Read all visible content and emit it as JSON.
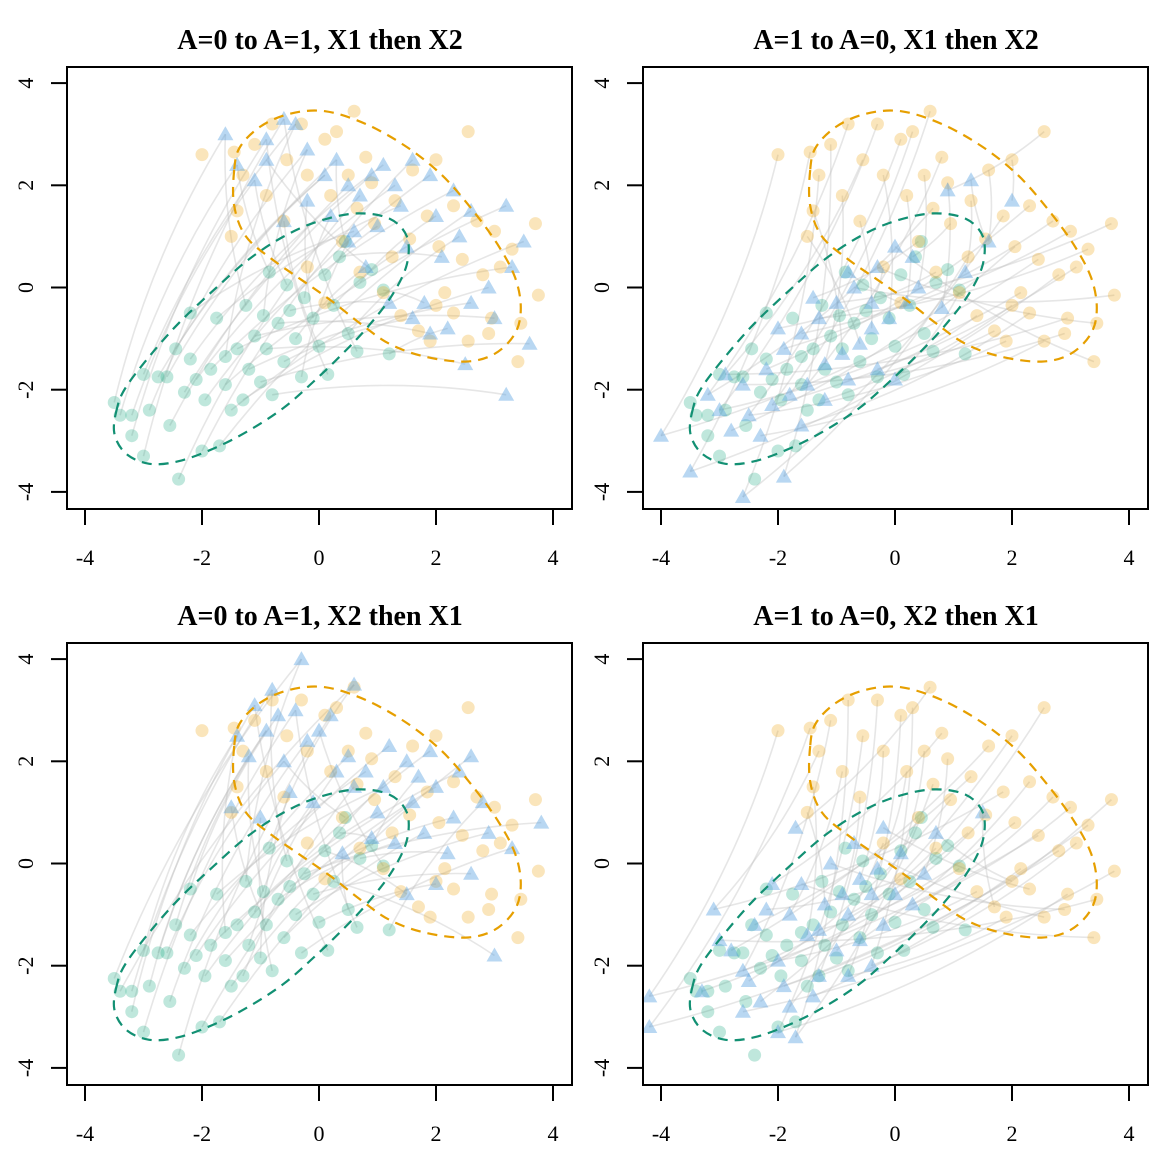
{
  "chart_data": [
    {
      "type": "scatter",
      "title": "A=0 to A=1, X1 then X2",
      "source_group": "A=0",
      "target_group": "A=1",
      "xlim": [
        -4.3,
        4.3
      ],
      "ylim": [
        -4.3,
        4.3
      ],
      "xticks": [
        -4,
        -2,
        0,
        2,
        4
      ],
      "yticks": [
        -4,
        -2,
        0,
        2,
        4
      ],
      "xtick_labels": [
        "-4",
        "-2",
        "0",
        "2",
        "4"
      ],
      "ytick_labels": [
        "-4",
        "-2",
        "0",
        "2",
        "4"
      ],
      "xlabel": "",
      "ylabel": "",
      "grid": false,
      "legend": "none",
      "counterfactual_targets": [
        [
          -1.6,
          3.0
        ],
        [
          -1.4,
          2.4
        ],
        [
          -1.1,
          2.1
        ],
        [
          -0.9,
          2.9
        ],
        [
          -0.6,
          3.3
        ],
        [
          -0.4,
          3.2
        ],
        [
          -0.2,
          2.7
        ],
        [
          0.1,
          2.2
        ],
        [
          0.3,
          2.5
        ],
        [
          0.5,
          2.0
        ],
        [
          0.7,
          1.8
        ],
        [
          0.9,
          2.2
        ],
        [
          1.1,
          2.4
        ],
        [
          1.3,
          2.0
        ],
        [
          1.6,
          2.5
        ],
        [
          1.9,
          2.2
        ],
        [
          2.3,
          1.9
        ],
        [
          2.6,
          1.5
        ],
        [
          3.2,
          1.6
        ],
        [
          3.5,
          0.9
        ],
        [
          3.3,
          0.4
        ],
        [
          2.9,
          0.0
        ],
        [
          2.6,
          -0.3
        ],
        [
          3.0,
          -0.6
        ],
        [
          3.6,
          -1.1
        ],
        [
          2.5,
          -1.5
        ],
        [
          3.2,
          -2.1
        ],
        [
          1.9,
          -0.9
        ],
        [
          1.6,
          -0.6
        ],
        [
          1.2,
          -0.3
        ],
        [
          0.8,
          0.4
        ],
        [
          0.5,
          0.9
        ],
        [
          0.2,
          1.4
        ],
        [
          -0.2,
          1.7
        ],
        [
          -0.6,
          1.3
        ],
        [
          1.0,
          1.2
        ],
        [
          1.5,
          0.8
        ],
        [
          2.1,
          0.6
        ],
        [
          2.4,
          1.0
        ],
        [
          2.0,
          1.4
        ],
        [
          -0.9,
          2.5
        ],
        [
          1.8,
          -0.3
        ],
        [
          2.2,
          -0.8
        ],
        [
          1.4,
          1.6
        ],
        [
          0.6,
          1.1
        ]
      ]
    },
    {
      "type": "scatter",
      "title": "A=1 to A=0, X1 then X2",
      "source_group": "A=1",
      "target_group": "A=0",
      "xlim": [
        -4.3,
        4.3
      ],
      "ylim": [
        -4.3,
        4.3
      ],
      "xticks": [
        -4,
        -2,
        0,
        2,
        4
      ],
      "yticks": [
        -4,
        -2,
        0,
        2,
        4
      ],
      "xtick_labels": [
        "-4",
        "-2",
        "0",
        "2",
        "4"
      ],
      "ytick_labels": [
        "-4",
        "-2",
        "0",
        "2",
        "4"
      ],
      "xlabel": "",
      "ylabel": "",
      "grid": false,
      "legend": "none",
      "counterfactual_targets": [
        [
          -4.0,
          -2.9
        ],
        [
          -3.5,
          -3.6
        ],
        [
          -2.6,
          -4.1
        ],
        [
          -1.9,
          -3.7
        ],
        [
          -3.2,
          -2.1
        ],
        [
          -2.9,
          -1.7
        ],
        [
          -3.0,
          -2.4
        ],
        [
          -2.5,
          -2.5
        ],
        [
          -2.1,
          -2.3
        ],
        [
          -1.8,
          -2.1
        ],
        [
          -1.5,
          -1.9
        ],
        [
          -1.2,
          -1.5
        ],
        [
          -0.9,
          -1.3
        ],
        [
          -0.6,
          -1.1
        ],
        [
          -0.4,
          -0.8
        ],
        [
          -0.1,
          -0.6
        ],
        [
          0.2,
          -0.3
        ],
        [
          0.4,
          0.0
        ],
        [
          0.8,
          -0.4
        ],
        [
          1.2,
          0.3
        ],
        [
          1.6,
          0.9
        ],
        [
          2.0,
          1.7
        ],
        [
          0.9,
          1.9
        ],
        [
          -2.2,
          -1.6
        ],
        [
          -1.9,
          -1.2
        ],
        [
          -1.6,
          -0.9
        ],
        [
          -1.3,
          -0.6
        ],
        [
          -1.0,
          -0.3
        ],
        [
          -0.7,
          0.0
        ],
        [
          -0.3,
          0.4
        ],
        [
          0.0,
          0.8
        ],
        [
          -2.6,
          -1.9
        ],
        [
          -2.3,
          -2.9
        ],
        [
          -1.6,
          -2.7
        ],
        [
          -1.2,
          -2.2
        ],
        [
          -0.8,
          -1.8
        ],
        [
          -0.3,
          -1.6
        ],
        [
          0.0,
          -1.8
        ],
        [
          -2.0,
          -0.8
        ],
        [
          -1.4,
          -0.2
        ],
        [
          -0.8,
          0.3
        ],
        [
          -0.4,
          -0.3
        ],
        [
          0.3,
          0.6
        ],
        [
          1.3,
          2.1
        ],
        [
          -2.8,
          -2.8
        ]
      ]
    },
    {
      "type": "scatter",
      "title": "A=0 to A=1, X2 then X1",
      "source_group": "A=0",
      "target_group": "A=1",
      "xlim": [
        -4.3,
        4.3
      ],
      "ylim": [
        -4.3,
        4.3
      ],
      "xticks": [
        -4,
        -2,
        0,
        2,
        4
      ],
      "yticks": [
        -4,
        -2,
        0,
        2,
        4
      ],
      "xtick_labels": [
        "-4",
        "-2",
        "0",
        "2",
        "4"
      ],
      "ytick_labels": [
        "-4",
        "-2",
        "0",
        "2",
        "4"
      ],
      "xlabel": "",
      "ylabel": "",
      "grid": false,
      "legend": "none",
      "counterfactual_targets": [
        [
          -0.3,
          4.0
        ],
        [
          0.6,
          3.5
        ],
        [
          -0.8,
          3.4
        ],
        [
          -1.1,
          3.1
        ],
        [
          -0.4,
          3.0
        ],
        [
          -1.4,
          2.5
        ],
        [
          -1.2,
          2.1
        ],
        [
          -0.9,
          2.6
        ],
        [
          -0.6,
          2.0
        ],
        [
          -0.2,
          2.4
        ],
        [
          0.2,
          2.9
        ],
        [
          0.5,
          2.1
        ],
        [
          0.8,
          1.8
        ],
        [
          1.2,
          2.3
        ],
        [
          1.5,
          2.0
        ],
        [
          1.9,
          2.2
        ],
        [
          2.4,
          1.8
        ],
        [
          2.6,
          2.1
        ],
        [
          2.0,
          1.5
        ],
        [
          1.6,
          1.2
        ],
        [
          1.0,
          1.0
        ],
        [
          0.6,
          1.5
        ],
        [
          0.3,
          1.8
        ],
        [
          -0.1,
          1.2
        ],
        [
          -0.5,
          1.4
        ],
        [
          -1.5,
          1.1
        ],
        [
          -1.0,
          0.9
        ],
        [
          1.3,
          0.4
        ],
        [
          1.8,
          0.6
        ],
        [
          2.3,
          0.9
        ],
        [
          2.9,
          0.6
        ],
        [
          3.3,
          0.3
        ],
        [
          3.8,
          0.8
        ],
        [
          2.6,
          -0.2
        ],
        [
          2.0,
          -0.4
        ],
        [
          1.5,
          -0.6
        ],
        [
          3.0,
          -1.8
        ],
        [
          0.9,
          0.5
        ],
        [
          0.4,
          0.2
        ],
        [
          2.2,
          0.2
        ],
        [
          1.7,
          1.7
        ],
        [
          0.0,
          2.6
        ],
        [
          2.8,
          1.2
        ],
        [
          1.1,
          1.5
        ],
        [
          -0.7,
          2.9
        ]
      ]
    },
    {
      "type": "scatter",
      "title": "A=1 to A=0, X2 then X1",
      "source_group": "A=1",
      "target_group": "A=0",
      "xlim": [
        -4.3,
        4.3
      ],
      "ylim": [
        -4.3,
        4.3
      ],
      "xticks": [
        -4,
        -2,
        0,
        2,
        4
      ],
      "yticks": [
        -4,
        -2,
        0,
        2,
        4
      ],
      "xtick_labels": [
        "-4",
        "-2",
        "0",
        "2",
        "4"
      ],
      "ytick_labels": [
        "-4",
        "-2",
        "0",
        "2",
        "4"
      ],
      "xlabel": "",
      "ylabel": "",
      "grid": false,
      "legend": "none",
      "counterfactual_targets": [
        [
          -4.2,
          -2.6
        ],
        [
          -4.2,
          -3.2
        ],
        [
          -3.1,
          -0.9
        ],
        [
          -2.6,
          -2.1
        ],
        [
          -1.7,
          -3.4
        ],
        [
          -2.0,
          -3.3
        ],
        [
          -1.3,
          -2.2
        ],
        [
          -0.8,
          -2.2
        ],
        [
          -0.4,
          -2.0
        ],
        [
          -1.7,
          0.7
        ],
        [
          -2.1,
          -0.4
        ],
        [
          -1.8,
          -1.0
        ],
        [
          -1.5,
          -1.4
        ],
        [
          -1.2,
          -0.8
        ],
        [
          -0.9,
          -0.6
        ],
        [
          -0.6,
          -0.3
        ],
        [
          -0.3,
          -0.1
        ],
        [
          0.1,
          0.2
        ],
        [
          0.5,
          -0.2
        ],
        [
          -2.4,
          -1.2
        ],
        [
          -2.8,
          -1.7
        ],
        [
          -2.3,
          -2.7
        ],
        [
          -1.0,
          -1.7
        ],
        [
          -0.6,
          -1.5
        ],
        [
          -0.2,
          -1.2
        ],
        [
          0.3,
          -0.8
        ],
        [
          -1.9,
          -2.4
        ],
        [
          -1.4,
          -2.6
        ],
        [
          -2.6,
          -2.9
        ],
        [
          -3.0,
          -1.5
        ],
        [
          -1.6,
          -0.4
        ],
        [
          -1.1,
          0.0
        ],
        [
          -0.7,
          0.4
        ],
        [
          -0.2,
          0.7
        ],
        [
          0.7,
          0.6
        ],
        [
          1.5,
          1.0
        ],
        [
          -2.0,
          -1.9
        ],
        [
          -1.3,
          -1.3
        ],
        [
          -0.8,
          -1.0
        ],
        [
          -0.4,
          -0.6
        ],
        [
          -2.2,
          -0.9
        ],
        [
          -1.8,
          -2.8
        ],
        [
          -2.5,
          -2.3
        ],
        [
          0.0,
          -0.6
        ],
        [
          -3.3,
          -2.5
        ]
      ]
    }
  ],
  "observed": {
    "group_A0": [
      [
        -3.5,
        -2.25
      ],
      [
        -3.4,
        -2.5
      ],
      [
        -3.2,
        -2.5
      ],
      [
        -3.2,
        -2.9
      ],
      [
        -3.0,
        -3.3
      ],
      [
        -3.0,
        -1.7
      ],
      [
        -2.9,
        -2.4
      ],
      [
        -2.75,
        -1.75
      ],
      [
        -2.6,
        -1.75
      ],
      [
        -2.55,
        -2.7
      ],
      [
        -2.4,
        -3.75
      ],
      [
        -2.3,
        -2.05
      ],
      [
        -2.2,
        -1.4
      ],
      [
        -2.1,
        -1.8
      ],
      [
        -2.0,
        -3.2
      ],
      [
        -1.95,
        -2.2
      ],
      [
        -1.85,
        -1.6
      ],
      [
        -1.7,
        -3.1
      ],
      [
        -1.6,
        -1.9
      ],
      [
        -1.5,
        -2.4
      ],
      [
        -1.4,
        -1.2
      ],
      [
        -1.3,
        -2.2
      ],
      [
        -1.2,
        -1.6
      ],
      [
        -1.1,
        -0.95
      ],
      [
        -1.0,
        -1.85
      ],
      [
        -0.9,
        -1.2
      ],
      [
        -0.8,
        -2.1
      ],
      [
        -0.7,
        -0.7
      ],
      [
        -0.6,
        -1.45
      ],
      [
        -0.5,
        -0.45
      ],
      [
        -0.4,
        -1.0
      ],
      [
        -0.3,
        -1.75
      ],
      [
        -0.25,
        -0.2
      ],
      [
        -0.1,
        -0.6
      ],
      [
        0.0,
        -1.15
      ],
      [
        0.1,
        0.25
      ],
      [
        0.25,
        -0.35
      ],
      [
        0.35,
        0.6
      ],
      [
        0.5,
        -0.9
      ],
      [
        0.7,
        0.1
      ],
      [
        0.9,
        0.35
      ],
      [
        1.1,
        -0.05
      ],
      [
        1.2,
        -1.3
      ],
      [
        -1.75,
        -0.6
      ],
      [
        -2.2,
        -0.5
      ],
      [
        -1.25,
        -0.35
      ],
      [
        -0.85,
        0.3
      ],
      [
        -0.55,
        0.05
      ],
      [
        0.15,
        -1.7
      ],
      [
        0.65,
        -1.25
      ],
      [
        -1.6,
        -1.35
      ],
      [
        -0.95,
        -0.55
      ],
      [
        -2.45,
        -1.2
      ],
      [
        0.45,
        0.9
      ]
    ],
    "group_A1": [
      [
        -2.0,
        2.6
      ],
      [
        -1.45,
        2.65
      ],
      [
        -1.3,
        2.2
      ],
      [
        -1.1,
        2.8
      ],
      [
        -0.8,
        3.2
      ],
      [
        -0.55,
        2.5
      ],
      [
        -0.3,
        3.2
      ],
      [
        0.1,
        2.9
      ],
      [
        0.3,
        3.05
      ],
      [
        0.6,
        3.45
      ],
      [
        0.8,
        2.55
      ],
      [
        -0.9,
        1.8
      ],
      [
        -1.4,
        1.5
      ],
      [
        -1.5,
        1.0
      ],
      [
        -0.6,
        1.3
      ],
      [
        -0.2,
        2.2
      ],
      [
        0.2,
        1.8
      ],
      [
        0.5,
        2.2
      ],
      [
        0.9,
        2.05
      ],
      [
        1.3,
        1.7
      ],
      [
        1.6,
        2.3
      ],
      [
        2.0,
        2.5
      ],
      [
        2.55,
        3.05
      ],
      [
        2.3,
        1.6
      ],
      [
        2.7,
        1.3
      ],
      [
        3.0,
        1.1
      ],
      [
        3.3,
        0.75
      ],
      [
        3.7,
        1.25
      ],
      [
        3.75,
        -0.15
      ],
      [
        3.45,
        -0.7
      ],
      [
        3.4,
        -1.45
      ],
      [
        2.9,
        -0.9
      ],
      [
        2.55,
        -1.05
      ],
      [
        2.3,
        -0.5
      ],
      [
        2.0,
        -0.35
      ],
      [
        1.7,
        -0.85
      ],
      [
        1.4,
        -0.55
      ],
      [
        1.1,
        -0.1
      ],
      [
        0.7,
        0.3
      ],
      [
        0.4,
        0.9
      ],
      [
        0.1,
        -0.3
      ],
      [
        -0.2,
        0.4
      ],
      [
        0.95,
        1.25
      ],
      [
        1.55,
        0.95
      ],
      [
        2.05,
        0.8
      ],
      [
        2.45,
        0.55
      ],
      [
        2.8,
        0.25
      ],
      [
        1.85,
        1.4
      ],
      [
        1.25,
        0.6
      ],
      [
        0.65,
        1.55
      ],
      [
        2.95,
        -0.6
      ],
      [
        2.15,
        -0.1
      ],
      [
        1.9,
        -1.05
      ],
      [
        3.1,
        0.4
      ]
    ]
  },
  "axes": {
    "xticks": [
      "-4",
      "-2",
      "0",
      "2",
      "4"
    ],
    "yticks": [
      "-4",
      "-2",
      "0",
      "2",
      "4"
    ]
  },
  "colors": {
    "group_A0": "#009E73",
    "group_A1": "#E69F00",
    "counterfactual": "#56A0E1",
    "arrow": "#BEBEBE"
  },
  "contours": {
    "group_A0": [
      [
        -3.45,
        -2.35
      ],
      [
        -3.5,
        -2.85
      ],
      [
        -3.3,
        -3.25
      ],
      [
        -2.9,
        -3.45
      ],
      [
        -2.4,
        -3.4
      ],
      [
        -1.8,
        -3.15
      ],
      [
        -1.2,
        -2.8
      ],
      [
        -0.6,
        -2.35
      ],
      [
        -0.1,
        -1.85
      ],
      [
        0.4,
        -1.3
      ],
      [
        0.85,
        -0.75
      ],
      [
        1.25,
        -0.15
      ],
      [
        1.5,
        0.45
      ],
      [
        1.5,
        1.0
      ],
      [
        1.2,
        1.35
      ],
      [
        0.65,
        1.45
      ],
      [
        0.0,
        1.3
      ],
      [
        -0.6,
        1.0
      ],
      [
        -1.2,
        0.55
      ],
      [
        -1.8,
        -0.05
      ],
      [
        -2.4,
        -0.7
      ],
      [
        -2.9,
        -1.35
      ],
      [
        -3.3,
        -1.95
      ],
      [
        -3.45,
        -2.35
      ]
    ],
    "group_A1": [
      [
        -1.45,
        2.3
      ],
      [
        -1.45,
        1.6
      ],
      [
        -1.25,
        1.0
      ],
      [
        -0.8,
        0.55
      ],
      [
        -0.3,
        0.15
      ],
      [
        0.2,
        -0.25
      ],
      [
        0.7,
        -0.7
      ],
      [
        1.2,
        -1.1
      ],
      [
        1.8,
        -1.35
      ],
      [
        2.5,
        -1.45
      ],
      [
        3.0,
        -1.3
      ],
      [
        3.35,
        -0.9
      ],
      [
        3.45,
        -0.4
      ],
      [
        3.35,
        0.2
      ],
      [
        3.05,
        0.85
      ],
      [
        2.6,
        1.55
      ],
      [
        2.1,
        2.2
      ],
      [
        1.5,
        2.75
      ],
      [
        0.8,
        3.2
      ],
      [
        0.1,
        3.45
      ],
      [
        -0.5,
        3.4
      ],
      [
        -1.0,
        3.15
      ],
      [
        -1.35,
        2.75
      ],
      [
        -1.45,
        2.3
      ]
    ]
  }
}
